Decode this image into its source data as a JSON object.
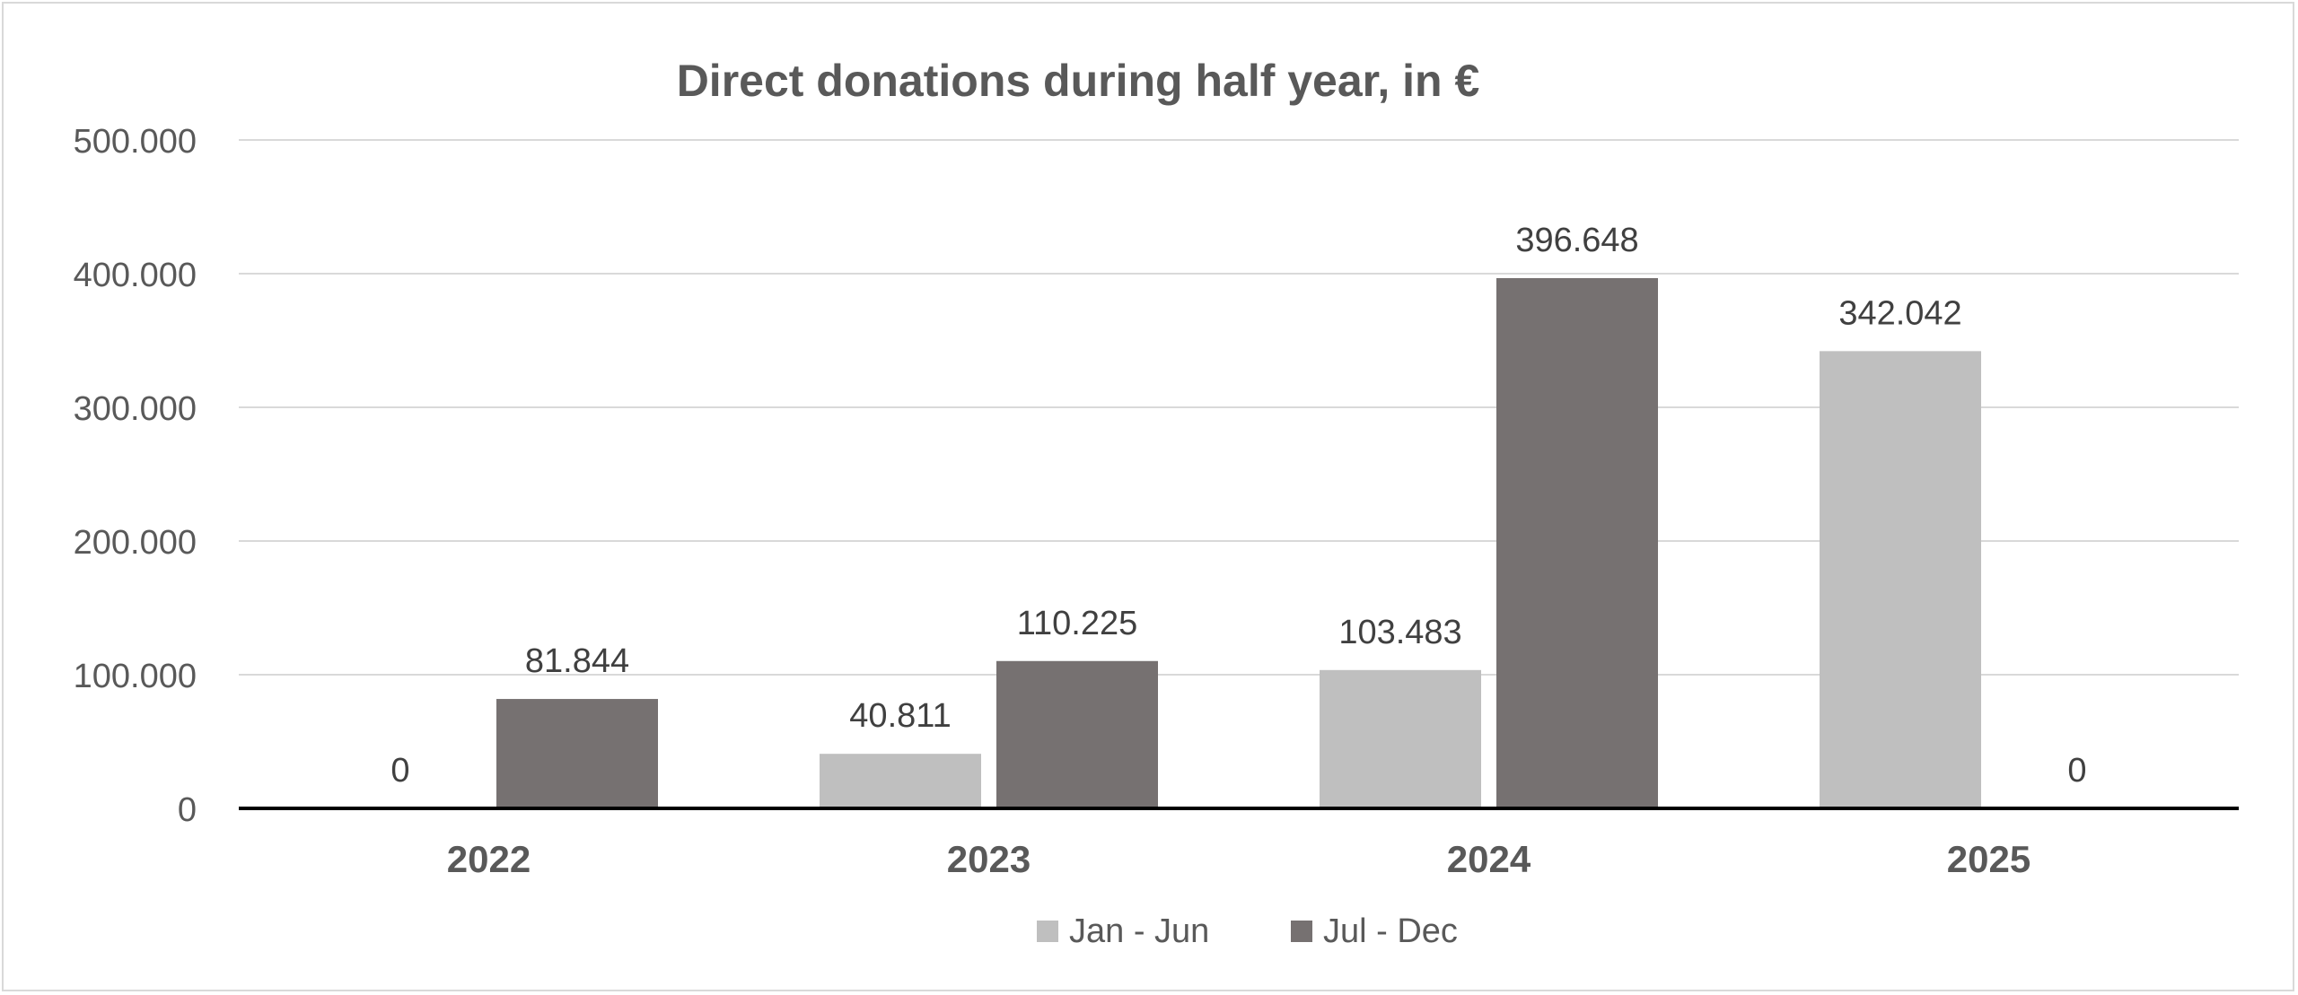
{
  "chart_data": {
    "type": "bar",
    "title": "Direct donations during half year, in €",
    "xlabel": "",
    "ylabel": "",
    "categories": [
      "2022",
      "2023",
      "2024",
      "2025"
    ],
    "series": [
      {
        "name": "Jan - Jun",
        "color": "#bfbfbf",
        "values": [
          0,
          40811,
          103483,
          342042
        ],
        "labels": [
          "0",
          "40.811",
          "103.483",
          "342.042"
        ]
      },
      {
        "name": "Jul - Dec",
        "color": "#767171",
        "values": [
          81844,
          110225,
          396648,
          0
        ],
        "labels": [
          "81.844",
          "110.225",
          "396.648",
          "0"
        ]
      }
    ],
    "ylim": [
      0,
      500000
    ],
    "yticks": [
      0,
      100000,
      200000,
      300000,
      400000,
      500000
    ],
    "ytick_labels": [
      "0",
      "100.000",
      "200.000",
      "300.000",
      "400.000",
      "500.000"
    ],
    "grid": true,
    "legend": "bottom"
  }
}
